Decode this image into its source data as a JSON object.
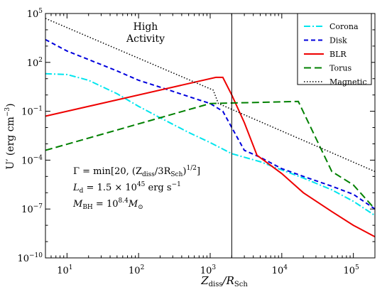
{
  "chart_data": {
    "type": "line",
    "xlabel_parts": {
      "main": "Z",
      "sub1": "diss",
      "mid": "/R",
      "sub2": "Sch"
    },
    "ylabel_parts": {
      "main": "U′ (erg cm",
      "sup": "−3",
      "close": ")"
    },
    "x_scale": "log",
    "y_scale": "log",
    "xlim": [
      5,
      200000
    ],
    "ylim": [
      1e-10,
      100000
    ],
    "x_ticks": [
      {
        "value": 10,
        "base": "10",
        "exp": "1"
      },
      {
        "value": 100,
        "base": "10",
        "exp": "2"
      },
      {
        "value": 1000,
        "base": "10",
        "exp": "3"
      },
      {
        "value": 10000,
        "base": "10",
        "exp": "4"
      },
      {
        "value": 100000,
        "base": "10",
        "exp": "5"
      }
    ],
    "y_ticks": [
      {
        "value": 1e-10,
        "base": "10",
        "exp": "−10"
      },
      {
        "value": 1e-07,
        "base": "10",
        "exp": "−7"
      },
      {
        "value": 0.0001,
        "base": "10",
        "exp": "−4"
      },
      {
        "value": 0.1,
        "base": "10",
        "exp": "−1"
      },
      {
        "value": 100,
        "base": "10",
        "exp": "2"
      },
      {
        "value": 100000,
        "base": "10",
        "exp": "5"
      }
    ],
    "vertical_line_x": 2000,
    "annotation": [
      "High",
      "Activity"
    ],
    "params": {
      "gamma": {
        "lhs": "Γ = min[20, (Z",
        "sub1": "diss",
        "mid": "/3R",
        "sub2": "Sch",
        "close": ")",
        "sup": "1/2",
        "end": "]"
      },
      "ld": {
        "lhs": "L",
        "sub": "d",
        "eq": " = 1.5 × 10",
        "sup": "45",
        "unit": " erg s",
        "unit_sup": "−1"
      },
      "mbh": {
        "lhs": "M",
        "sub": "BH",
        "eq": " = 10",
        "sup": "8.4",
        "m": "M",
        "sun": "⊙"
      }
    },
    "series": [
      {
        "name": "Corona",
        "color": "#00e5ee",
        "dash": "dashdot",
        "points": [
          [
            5,
            20
          ],
          [
            10,
            18
          ],
          [
            20,
            8
          ],
          [
            50,
            1.2
          ],
          [
            100,
            0.2
          ],
          [
            200,
            0.04
          ],
          [
            500,
            0.005
          ],
          [
            1000,
            0.0012
          ],
          [
            2000,
            0.00025
          ],
          [
            5000,
            8e-05
          ],
          [
            10000,
            2.5e-05
          ],
          [
            20000,
            8e-06
          ],
          [
            50000,
            1.5e-06
          ],
          [
            100000,
            3e-07
          ],
          [
            200000,
            4e-08
          ]
        ]
      },
      {
        "name": "Disk",
        "color": "#0000dd",
        "dash": "dashed",
        "points": [
          [
            5,
            2500
          ],
          [
            10,
            500
          ],
          [
            20,
            150
          ],
          [
            50,
            30
          ],
          [
            100,
            8
          ],
          [
            200,
            3
          ],
          [
            500,
            0.8
          ],
          [
            1000,
            0.3
          ],
          [
            1500,
            0.1
          ],
          [
            2000,
            0.01
          ],
          [
            3000,
            0.0004
          ],
          [
            5000,
            0.00015
          ],
          [
            10000,
            3e-05
          ],
          [
            20000,
            1e-05
          ],
          [
            50000,
            2.5e-06
          ],
          [
            100000,
            8e-07
          ],
          [
            200000,
            1e-07
          ]
        ]
      },
      {
        "name": "BLR",
        "color": "#ee0000",
        "dash": "solid",
        "points": [
          [
            5,
            0.05
          ],
          [
            1200,
            12
          ],
          [
            1500,
            12
          ],
          [
            2000,
            1
          ],
          [
            3000,
            0.02
          ],
          [
            4500,
            0.0002
          ],
          [
            10000,
            1.5e-05
          ],
          [
            20000,
            1e-06
          ],
          [
            50000,
            7e-08
          ],
          [
            100000,
            1e-08
          ],
          [
            200000,
            2e-09
          ]
        ]
      },
      {
        "name": "Torus",
        "color": "#008000",
        "dash": "longdash",
        "points": [
          [
            5,
            0.0004
          ],
          [
            1000,
            0.3
          ],
          [
            17000,
            0.4
          ],
          [
            50000,
            2e-05
          ],
          [
            100000,
            3e-06
          ],
          [
            200000,
            1e-07
          ]
        ]
      },
      {
        "name": "Magnetic",
        "color": "#000000",
        "dash": "dotted",
        "points": [
          [
            5,
            50000
          ],
          [
            1100,
            2
          ],
          [
            1300,
            0.3
          ],
          [
            200000,
            2e-05
          ]
        ]
      }
    ]
  }
}
